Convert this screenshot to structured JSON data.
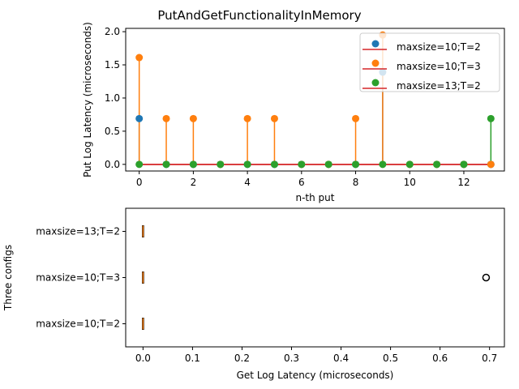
{
  "figure_title": "PutAndGetFunctionalityInMemory",
  "colors": {
    "series_blue": "#1f77b4",
    "series_orange": "#ff7f0e",
    "series_green": "#2ca02c",
    "baseline_red": "#d62728",
    "box_median_orange": "#ff7f0e",
    "axis": "#000000"
  },
  "chart_data": [
    {
      "type": "stem",
      "title": "",
      "xlabel": "n-th put",
      "ylabel": "Put Log Latency (microseconds)",
      "xlim": [
        -0.5,
        13.5
      ],
      "ylim": [
        -0.1,
        2.05
      ],
      "x_ticks": [
        "0",
        "2",
        "4",
        "6",
        "8",
        "10",
        "12"
      ],
      "x_tick_values": [
        0,
        2,
        4,
        6,
        8,
        10,
        12
      ],
      "y_ticks": [
        "0.0",
        "0.5",
        "1.0",
        "1.5",
        "2.0"
      ],
      "y_tick_values": [
        0.0,
        0.5,
        1.0,
        1.5,
        2.0
      ],
      "grid": false,
      "legend_placement": "top-right",
      "x": [
        0,
        1,
        2,
        3,
        4,
        5,
        6,
        7,
        8,
        9,
        10,
        11,
        12,
        13
      ],
      "series": [
        {
          "name": "maxsize=10;T=2",
          "color_key": "series_blue",
          "values": [
            0.69,
            0,
            0,
            0,
            0,
            0,
            0,
            0,
            0,
            1.39,
            0,
            0,
            0,
            0
          ]
        },
        {
          "name": "maxsize=10;T=3",
          "color_key": "series_orange",
          "values": [
            1.61,
            0.69,
            0.69,
            0,
            0.69,
            0.69,
            0,
            0,
            0.69,
            1.95,
            0,
            0,
            0,
            0
          ]
        },
        {
          "name": "maxsize=13;T=2",
          "color_key": "series_green",
          "values": [
            0,
            0,
            0,
            0,
            0,
            0,
            0,
            0,
            0,
            0,
            0,
            0,
            0,
            0.69
          ]
        }
      ]
    },
    {
      "type": "boxplot",
      "orientation": "horizontal",
      "title": "",
      "xlabel": "Get Log Latency (microseconds)",
      "ylabel": "Three configs",
      "xlim": [
        -0.035,
        0.73
      ],
      "x_ticks": [
        "0.0",
        "0.1",
        "0.2",
        "0.3",
        "0.4",
        "0.5",
        "0.6",
        "0.7"
      ],
      "x_tick_values": [
        0.0,
        0.1,
        0.2,
        0.3,
        0.4,
        0.5,
        0.6,
        0.7
      ],
      "categories": [
        "maxsize=10;T=2",
        "maxsize=10;T=3",
        "maxsize=13;T=2"
      ],
      "grid": false,
      "boxes": [
        {
          "category": "maxsize=10;T=2",
          "min": 0,
          "q1": 0,
          "median": 0,
          "q3": 0,
          "max": 0,
          "outliers": []
        },
        {
          "category": "maxsize=10;T=3",
          "min": 0,
          "q1": 0,
          "median": 0,
          "q3": 0,
          "max": 0,
          "outliers": [
            0.693
          ]
        },
        {
          "category": "maxsize=13;T=2",
          "min": 0,
          "q1": 0,
          "median": 0,
          "q3": 0,
          "max": 0,
          "outliers": []
        }
      ]
    }
  ]
}
